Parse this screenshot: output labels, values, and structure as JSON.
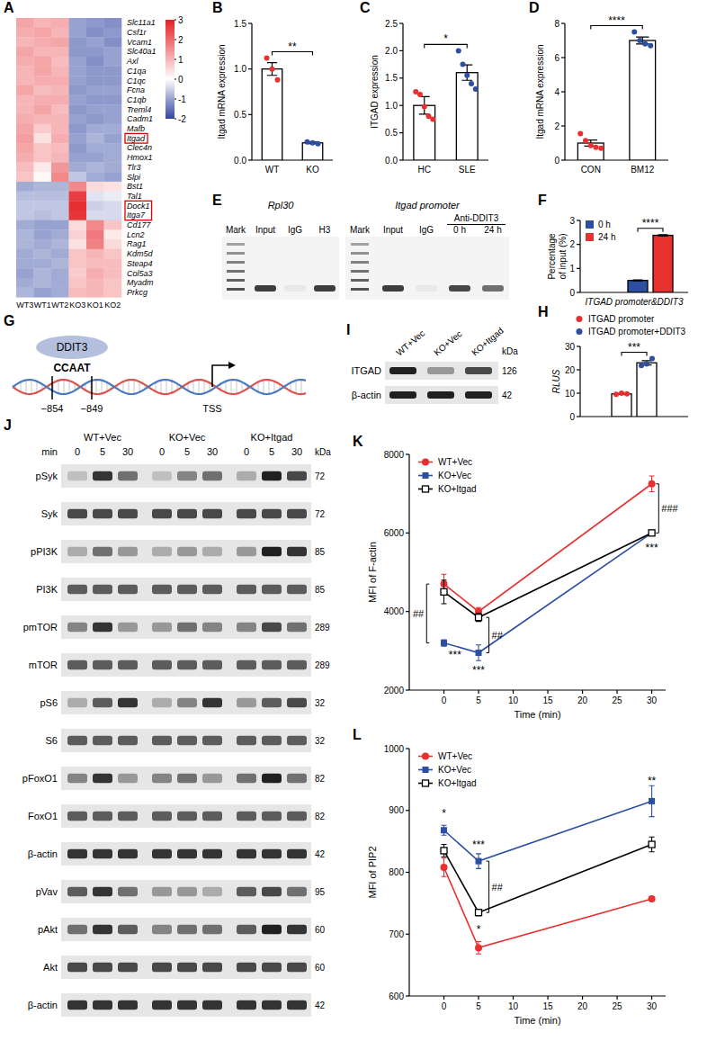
{
  "chart_data": [
    {
      "type": "heatmap",
      "panel": "A",
      "rows": [
        "Slc11a1",
        "Csf1r",
        "Vcam1",
        "Slc40a1",
        "Axl",
        "C1qa",
        "C1qc",
        "Fcna",
        "C1qb",
        "Treml4",
        "Cadm1",
        "Mafb",
        "Itgad",
        "Clec4n",
        "Hmox1",
        "Tlr3",
        "Slpi",
        "Bst1",
        "Tal1",
        "Dock1",
        "Itga7",
        "Cd177",
        "Lcn2",
        "Rag1",
        "Kdm5d",
        "Steap4",
        "Col5a3",
        "Myadm",
        "Prkcg"
      ],
      "columns": [
        "WT3",
        "WT1",
        "WT2",
        "KO3",
        "KO1",
        "KO2"
      ],
      "cells": [
        [
          1.2,
          1.0,
          1.1,
          -1.0,
          -1.1,
          -1.2
        ],
        [
          1.1,
          1.2,
          1.0,
          -1.0,
          -1.2,
          -1.1
        ],
        [
          1.0,
          1.1,
          1.2,
          -1.1,
          -1.0,
          -1.2
        ],
        [
          1.2,
          1.0,
          1.0,
          -1.1,
          -1.1,
          -1.0
        ],
        [
          1.1,
          1.2,
          0.9,
          -1.0,
          -1.2,
          -1.0
        ],
        [
          1.0,
          1.2,
          1.0,
          -1.0,
          -1.1,
          -1.1
        ],
        [
          1.0,
          1.1,
          1.1,
          -1.0,
          -1.1,
          -1.1
        ],
        [
          1.2,
          0.9,
          1.0,
          -1.1,
          -1.0,
          -1.0
        ],
        [
          1.0,
          1.1,
          1.1,
          -1.0,
          -1.1,
          -1.1
        ],
        [
          1.0,
          1.2,
          0.9,
          -1.1,
          -1.0,
          -1.0
        ],
        [
          1.1,
          1.0,
          1.0,
          -1.0,
          -1.1,
          -1.0
        ],
        [
          1.2,
          0.7,
          1.0,
          -1.1,
          -0.9,
          -0.9
        ],
        [
          1.3,
          0.4,
          1.1,
          -1.0,
          -0.8,
          -1.0
        ],
        [
          1.2,
          0.8,
          0.9,
          -1.1,
          -0.9,
          -0.9
        ],
        [
          1.1,
          0.8,
          1.0,
          -1.0,
          -1.0,
          -0.9
        ],
        [
          0.9,
          0.3,
          1.4,
          -0.9,
          -0.8,
          -0.9
        ],
        [
          0.8,
          0.1,
          1.6,
          -0.6,
          -0.9,
          -1.0
        ],
        [
          -0.9,
          -0.8,
          -0.8,
          1.6,
          0.5,
          0.4
        ],
        [
          -0.7,
          -0.7,
          -0.7,
          2.6,
          -0.3,
          -0.2
        ],
        [
          -0.6,
          -0.6,
          -0.6,
          2.8,
          -0.5,
          -0.4
        ],
        [
          -0.6,
          -0.7,
          -0.6,
          2.7,
          -0.4,
          -0.4
        ],
        [
          -0.9,
          -1.0,
          -1.0,
          0.5,
          1.6,
          0.8
        ],
        [
          -0.8,
          -1.0,
          -0.9,
          0.6,
          1.8,
          0.3
        ],
        [
          -0.8,
          -0.9,
          -0.8,
          0.4,
          1.7,
          0.5
        ],
        [
          -0.9,
          -0.8,
          -0.9,
          0.8,
          1.0,
          0.8
        ],
        [
          -0.9,
          -0.9,
          -0.8,
          0.8,
          0.9,
          0.9
        ],
        [
          -1.0,
          -0.8,
          -0.9,
          0.7,
          1.1,
          0.9
        ],
        [
          -0.9,
          -0.8,
          -0.9,
          0.8,
          1.0,
          0.8
        ],
        [
          -0.8,
          -1.0,
          -0.9,
          0.9,
          1.0,
          0.8
        ]
      ],
      "colorbar": {
        "range": [
          -2,
          3
        ],
        "ticks": [
          3,
          2,
          1,
          0,
          -1,
          -2
        ]
      },
      "highlight_rows": [
        [
          12,
          12
        ],
        [
          19,
          20
        ]
      ]
    },
    {
      "type": "bar",
      "panel": "B",
      "y_label": "Itgad mRNA expression",
      "categories": [
        "WT",
        "KO"
      ],
      "values": [
        1.0,
        0.19
      ],
      "errors": [
        0.07,
        0.01
      ],
      "points": [
        [
          1.12,
          1.0,
          0.88
        ],
        [
          0.2,
          0.19,
          0.18
        ]
      ],
      "colors": [
        "#e8302f",
        "#2d4fa1"
      ],
      "ylim": [
        0,
        1.5
      ],
      "yticks": [
        {
          "value": 0,
          "label": "0.0"
        },
        0.5,
        {
          "value": 1,
          "label": "1.0"
        },
        1.5
      ],
      "significance": "**"
    },
    {
      "type": "bar",
      "panel": "C",
      "y_label": "ITGAD expression",
      "categories": [
        "HC",
        "SLE"
      ],
      "values": [
        1.0,
        1.6
      ],
      "errors": [
        0.16,
        0.14
      ],
      "points": [
        [
          1.25,
          1.2,
          0.98,
          0.8,
          0.75
        ],
        [
          2.0,
          1.75,
          1.55,
          1.4,
          1.3
        ]
      ],
      "colors": [
        "#e8302f",
        "#2d4fa1"
      ],
      "ylim": [
        0,
        2.5
      ],
      "yticks": [
        {
          "value": 0,
          "label": "0.0"
        },
        0.5,
        {
          "value": 1,
          "label": "1.0"
        },
        1.5,
        {
          "value": 2,
          "label": "2.0"
        },
        2.5
      ],
      "significance": "*"
    },
    {
      "type": "bar",
      "panel": "D",
      "y_label": "Itgad mRNA expression",
      "categories": [
        "CON",
        "BM12"
      ],
      "values": [
        1.0,
        7.0
      ],
      "errors": [
        0.18,
        0.2
      ],
      "points": [
        [
          1.55,
          1.15,
          0.85,
          0.75,
          0.7
        ],
        [
          7.5,
          7.0,
          6.8,
          6.7
        ]
      ],
      "colors": [
        "#e8302f",
        "#2d4fa1"
      ],
      "ylim": [
        0,
        8
      ],
      "yticks": [
        0,
        2,
        4,
        6,
        8
      ],
      "significance": "****"
    },
    {
      "type": "gel",
      "panel": "E",
      "groups": [
        {
          "title": "Rpl30",
          "lanes": [
            {
              "label": "Mark",
              "ladder": true
            },
            {
              "label": "Input",
              "band": 0.85
            },
            {
              "label": "IgG",
              "band": 0
            },
            {
              "label": "H3",
              "band": 0.85
            }
          ]
        },
        {
          "title": "Itgad promoter",
          "subtitle": "Anti-DDIT3",
          "subtitle_lanes": [
            3,
            4
          ],
          "lanes": [
            {
              "label": "Mark",
              "ladder": true
            },
            {
              "label": "Input",
              "band": 0.85
            },
            {
              "label": "IgG",
              "band": 0
            },
            {
              "label": "0 h",
              "band": 0.8
            },
            {
              "label": "24 h",
              "band": 0.6
            }
          ]
        }
      ]
    },
    {
      "type": "bar",
      "panel": "F",
      "x_label": "ITGAD promoter&DDIT3",
      "y_label": "Percentage of input (%)",
      "categories": [
        null
      ],
      "series": [
        {
          "name": "0 h",
          "color": "#2d4fa1",
          "values": [
            0.5
          ],
          "errors": [
            0.02
          ]
        },
        {
          "name": "24 h",
          "color": "#e8302f",
          "values": [
            2.38
          ],
          "errors": [
            0.03
          ]
        }
      ],
      "ylim": [
        0,
        3
      ],
      "yticks": [
        0,
        1,
        2,
        3
      ],
      "legend": "top-left",
      "significance": "****"
    },
    {
      "type": "diagram",
      "panel": "G",
      "protein": "DDIT3",
      "motif": "CCAAT",
      "positions": [
        "−854",
        "−849"
      ],
      "tss": "TSS"
    },
    {
      "type": "bar",
      "panel": "H",
      "y_label": "RLUS",
      "categories": [
        null
      ],
      "series": [
        {
          "name": "ITGAD promoter",
          "color": "#e8302f",
          "values": [
            9.7
          ],
          "errors": [
            0.15
          ],
          "points": [
            [
              9.5,
              10.0,
              9.7
            ]
          ]
        },
        {
          "name": "ITGAD promoter+DDIT3",
          "color": "#2d4fa1",
          "values": [
            23.0
          ],
          "errors": [
            0.9
          ],
          "points": [
            [
              21.8,
              22.5,
              24.8
            ]
          ]
        }
      ],
      "ylim": [
        0,
        30
      ],
      "yticks": [
        0,
        10,
        20,
        30
      ],
      "legend": "top",
      "significance": "***"
    },
    {
      "type": "western_blot",
      "panel": "I",
      "unit": "kDa",
      "lanes": [
        "WT+Vec",
        "KO+Vec",
        "KO+Itgad"
      ],
      "rows": [
        {
          "label": "ITGAD",
          "kda": 126,
          "bands": [
            1.0,
            0.4,
            0.8
          ]
        },
        {
          "label": "β-actin",
          "kda": 42,
          "bands": [
            1.0,
            1.0,
            1.0
          ]
        }
      ]
    },
    {
      "type": "western_blot",
      "panel": "J",
      "unit": "kDa",
      "time_label": "min",
      "groups": [
        "WT+Vec",
        "KO+Vec",
        "KO+Itgad"
      ],
      "times": [
        0,
        5,
        30
      ],
      "rows": [
        {
          "label": "pSyk",
          "kda": 72,
          "bands": [
            0.2,
            0.9,
            0.6,
            0.2,
            0.5,
            0.6,
            0.3,
            1.0,
            0.8
          ]
        },
        {
          "label": "Syk",
          "kda": 72,
          "bands": [
            0.8,
            0.8,
            0.8,
            0.8,
            0.8,
            0.8,
            0.8,
            0.8,
            0.8
          ]
        },
        {
          "label": "pPI3K",
          "kda": 85,
          "bands": [
            0.3,
            0.6,
            0.4,
            0.3,
            0.4,
            0.3,
            0.4,
            1.0,
            0.9
          ]
        },
        {
          "label": "PI3K",
          "kda": 85,
          "bands": [
            0.7,
            0.7,
            0.7,
            0.7,
            0.7,
            0.7,
            0.7,
            0.7,
            0.7
          ]
        },
        {
          "label": "pmTOR",
          "kda": 289,
          "bands": [
            0.5,
            0.9,
            0.4,
            0.4,
            0.6,
            0.5,
            0.5,
            0.8,
            0.6
          ]
        },
        {
          "label": "mTOR",
          "kda": 289,
          "bands": [
            0.7,
            0.7,
            0.7,
            0.7,
            0.7,
            0.7,
            0.7,
            0.7,
            0.7
          ]
        },
        {
          "label": "pS6",
          "kda": 32,
          "bands": [
            0.3,
            0.7,
            0.9,
            0.3,
            0.5,
            0.9,
            0.4,
            0.7,
            0.8
          ]
        },
        {
          "label": "S6",
          "kda": 32,
          "bands": [
            0.7,
            0.7,
            0.7,
            0.7,
            0.7,
            0.7,
            0.7,
            0.7,
            0.7
          ]
        },
        {
          "label": "pFoxO1",
          "kda": 82,
          "bands": [
            0.5,
            0.9,
            0.4,
            0.5,
            0.6,
            0.4,
            0.6,
            1.0,
            0.6
          ]
        },
        {
          "label": "FoxO1",
          "kda": 82,
          "bands": [
            0.7,
            0.7,
            0.7,
            0.7,
            0.7,
            0.7,
            0.7,
            0.7,
            0.7
          ]
        },
        {
          "label": "β-actin",
          "kda": 42,
          "bands": [
            0.9,
            0.9,
            0.9,
            0.9,
            0.9,
            0.9,
            0.9,
            0.9,
            0.9
          ]
        },
        {
          "label": "pVav",
          "kda": 95,
          "bands": [
            0.7,
            0.9,
            0.6,
            0.4,
            0.4,
            0.3,
            0.7,
            0.8,
            0.6
          ]
        },
        {
          "label": "pAkt",
          "kda": 60,
          "bands": [
            0.6,
            0.9,
            0.7,
            0.5,
            0.6,
            0.6,
            0.7,
            1.0,
            0.9
          ]
        },
        {
          "label": "Akt",
          "kda": 60,
          "bands": [
            0.8,
            0.8,
            0.8,
            0.8,
            0.8,
            0.8,
            0.8,
            0.8,
            0.8
          ]
        },
        {
          "label": "β-actin",
          "kda": 42,
          "bands": [
            0.9,
            0.9,
            0.9,
            0.9,
            0.9,
            0.9,
            0.9,
            0.9,
            0.9
          ]
        }
      ]
    },
    {
      "type": "line",
      "panel": "K",
      "x_label": "Time (min)",
      "y_label": "MFI of F-actin",
      "x": [
        0,
        5,
        30
      ],
      "xlim": [
        -5,
        32
      ],
      "xticks": [
        0,
        5,
        10,
        15,
        20,
        25,
        30
      ],
      "ylim": [
        2000,
        8000
      ],
      "yticks": [
        2000,
        4000,
        6000,
        8000
      ],
      "legend": "top-left",
      "series": [
        {
          "name": "WT+Vec",
          "color": "#e8302f",
          "marker": "circle",
          "values": [
            4700,
            4000,
            7250
          ],
          "errors": [
            250,
            100,
            200
          ]
        },
        {
          "name": "KO+Vec",
          "color": "#2d4fa1",
          "marker": "square",
          "values": [
            3200,
            2950,
            6000
          ],
          "errors": [
            80,
            200,
            50
          ]
        },
        {
          "name": "KO+Itgad",
          "color": "#000000",
          "marker": "open-square",
          "values": [
            4500,
            3850,
            6000
          ],
          "errors": [
            300,
            100,
            50
          ]
        }
      ],
      "annotations": [
        {
          "text": "***",
          "x": 1.6,
          "y": 2900
        },
        {
          "text": "***",
          "x": 5,
          "y": 2500
        },
        {
          "text": "***",
          "x": 30,
          "y": 5620
        },
        {
          "text": "##",
          "x": -2.5,
          "y": [
            3200,
            4700
          ]
        },
        {
          "text": "##",
          "x": 6.5,
          "y": [
            2950,
            3850
          ]
        },
        {
          "text": "###",
          "x": 31,
          "y": [
            6000,
            7250
          ]
        }
      ]
    },
    {
      "type": "line",
      "panel": "L",
      "x_label": "Time (min)",
      "y_label": "MFI of PIP2",
      "x": [
        0,
        5,
        30
      ],
      "xlim": [
        -5,
        32
      ],
      "xticks": [
        0,
        5,
        10,
        15,
        20,
        25,
        30
      ],
      "ylim": [
        600,
        1000
      ],
      "yticks": [
        600,
        700,
        800,
        900,
        1000
      ],
      "legend": "top-left",
      "series": [
        {
          "name": "WT+Vec",
          "color": "#e8302f",
          "marker": "circle",
          "values": [
            808,
            678,
            757
          ],
          "errors": [
            15,
            10,
            3
          ]
        },
        {
          "name": "KO+Vec",
          "color": "#2d4fa1",
          "marker": "square",
          "values": [
            868,
            818,
            915
          ],
          "errors": [
            8,
            12,
            25
          ]
        },
        {
          "name": "KO+Itgad",
          "color": "#000000",
          "marker": "open-square",
          "values": [
            835,
            735,
            845
          ],
          "errors": [
            10,
            5,
            12
          ]
        }
      ],
      "annotations": [
        {
          "text": "*",
          "x": 0,
          "y": 895
        },
        {
          "text": "***",
          "x": 5,
          "y": 845
        },
        {
          "text": "*",
          "x": 5,
          "y": 708
        },
        {
          "text": "##",
          "x": 6.5,
          "y": [
            735,
            818
          ]
        },
        {
          "text": "**",
          "x": 30,
          "y": 948
        }
      ]
    }
  ]
}
